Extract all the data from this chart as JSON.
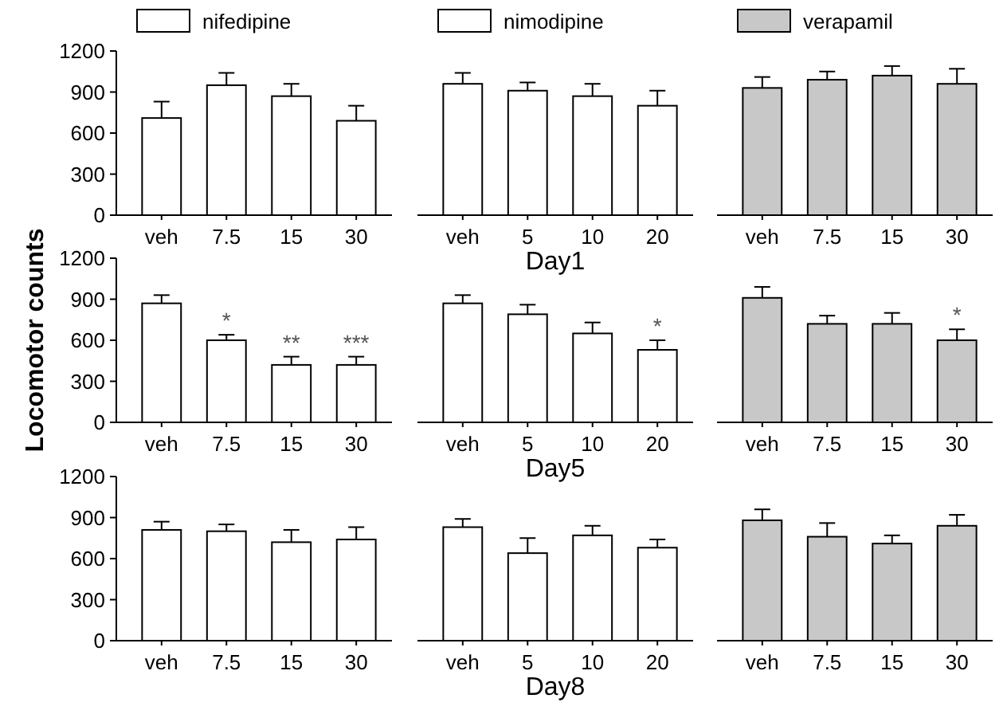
{
  "chart_data": [
    {
      "type": "bar",
      "categories": [
        "veh",
        "7.5",
        "15",
        "30"
      ],
      "series": [
        {
          "name": "nifedipine",
          "color": "#ffffff",
          "values": [
            710,
            950,
            870,
            690
          ],
          "errors": [
            120,
            90,
            90,
            110
          ]
        }
      ],
      "ylim": [
        0,
        1200
      ],
      "yticks": [
        0,
        300,
        600,
        900,
        1200
      ],
      "legend": "top"
    },
    {
      "type": "bar",
      "categories": [
        "veh",
        "5",
        "10",
        "20"
      ],
      "series": [
        {
          "name": "nimodipine",
          "color": "#ffffff",
          "values": [
            960,
            910,
            870,
            800
          ],
          "errors": [
            80,
            60,
            90,
            110
          ]
        }
      ],
      "ylim": [
        0,
        1200
      ],
      "tick_labels": "x",
      "xlabel": "Day1",
      "legend": "top"
    },
    {
      "type": "bar",
      "categories": [
        "veh",
        "7.5",
        "15",
        "30"
      ],
      "series": [
        {
          "name": "verapamil",
          "color": "#c8c8c8",
          "values": [
            930,
            990,
            1020,
            960
          ],
          "errors": [
            80,
            60,
            70,
            110
          ]
        }
      ],
      "ylim": [
        0,
        1200
      ],
      "tick_labels": "x",
      "legend": "top"
    },
    {
      "type": "bar",
      "categories": [
        "veh",
        "7.5",
        "15",
        "30"
      ],
      "series": [
        {
          "color": "#ffffff",
          "values": [
            870,
            600,
            420,
            420
          ],
          "errors": [
            60,
            40,
            60,
            60
          ]
        }
      ],
      "ylim": [
        0,
        1200
      ],
      "yticks": [
        0,
        300,
        600,
        900,
        1200
      ],
      "ylabel": "Locomotor counts",
      "annotations": [
        {
          "text": "*",
          "x": "7.5",
          "y": 640
        },
        {
          "text": "**",
          "x": "15",
          "y": 480
        },
        {
          "text": "***",
          "x": "30",
          "y": 480
        }
      ]
    },
    {
      "type": "bar",
      "categories": [
        "veh",
        "5",
        "10",
        "20"
      ],
      "series": [
        {
          "color": "#ffffff",
          "values": [
            870,
            790,
            650,
            530
          ],
          "errors": [
            60,
            70,
            80,
            70
          ]
        }
      ],
      "ylim": [
        0,
        1200
      ],
      "tick_labels": "x",
      "xlabel": "Day5",
      "annotations": [
        {
          "text": "*",
          "x": "20",
          "y": 600
        }
      ]
    },
    {
      "type": "bar",
      "categories": [
        "veh",
        "7.5",
        "15",
        "30"
      ],
      "series": [
        {
          "color": "#c8c8c8",
          "values": [
            910,
            720,
            720,
            600
          ],
          "errors": [
            80,
            60,
            80,
            80
          ]
        }
      ],
      "ylim": [
        0,
        1200
      ],
      "tick_labels": "x",
      "annotations": [
        {
          "text": "*",
          "x": "30",
          "y": 680
        }
      ]
    },
    {
      "type": "bar",
      "categories": [
        "veh",
        "7.5",
        "15",
        "30"
      ],
      "series": [
        {
          "color": "#ffffff",
          "values": [
            810,
            800,
            720,
            740
          ],
          "errors": [
            60,
            50,
            90,
            90
          ]
        }
      ],
      "ylim": [
        0,
        1200
      ],
      "yticks": [
        0,
        300,
        600,
        900,
        1200
      ]
    },
    {
      "type": "bar",
      "categories": [
        "veh",
        "5",
        "10",
        "20"
      ],
      "series": [
        {
          "color": "#ffffff",
          "values": [
            830,
            640,
            770,
            680
          ],
          "errors": [
            60,
            110,
            70,
            60
          ]
        }
      ],
      "ylim": [
        0,
        1200
      ],
      "tick_labels": "x",
      "xlabel": "Day8"
    },
    {
      "type": "bar",
      "categories": [
        "veh",
        "7.5",
        "15",
        "30"
      ],
      "series": [
        {
          "color": "#c8c8c8",
          "values": [
            880,
            760,
            710,
            840
          ],
          "errors": [
            80,
            100,
            60,
            80
          ]
        }
      ],
      "ylim": [
        0,
        1200
      ],
      "tick_labels": "x"
    }
  ]
}
